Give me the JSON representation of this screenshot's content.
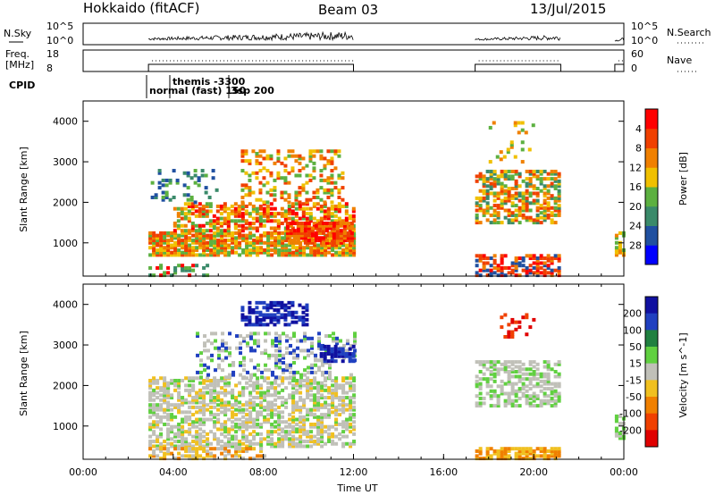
{
  "header": {
    "radar": "Hokkaido (fitACF)",
    "beam": "Beam 03",
    "date": "13/Jul/2015"
  },
  "panels": {
    "nsky_label": "N.Sky",
    "nsearch_label": "N.Search",
    "nsky_ticks": [
      "10^5",
      "10^0"
    ],
    "nsearch_ticks": [
      "10^5",
      "10^0"
    ],
    "freq_label_1": "Freq.",
    "freq_label_2": "[MHz]",
    "freq_ticks": [
      "18",
      "8"
    ],
    "nave_label": "Nave",
    "nave_ticks": [
      "60",
      "0"
    ],
    "cpid_label": "CPID",
    "cpid_text_1": "themis -3300",
    "cpid_text_2": "normal (fast) 150",
    "cpid_text_3": "3sp 200"
  },
  "colors": {
    "power": [
      "#0000ff",
      "#2050a0",
      "#3a8a6a",
      "#5cb040",
      "#f0c000",
      "#f08000",
      "#f04000",
      "#ff0000"
    ],
    "velocity": [
      "#1010a0",
      "#2040c0",
      "#208040",
      "#60d040",
      "#c0c0b8",
      "#f0c020",
      "#f08000",
      "#f04000",
      "#e00000"
    ]
  },
  "chart_data": [
    {
      "type": "heatmap",
      "name": "power",
      "ylabel": "Slant Range [km]",
      "ylim": [
        180,
        4500
      ],
      "yticks": [
        1000,
        2000,
        3000,
        4000
      ],
      "colorbar_label": "Power [dB]",
      "colorbar_ticks": [
        "4",
        "8",
        "12",
        "16",
        "20",
        "24",
        "28"
      ],
      "grid": false
    },
    {
      "type": "heatmap",
      "name": "velocity",
      "ylabel": "Slant Range [km]",
      "ylim": [
        180,
        4500
      ],
      "yticks": [
        1000,
        2000,
        3000,
        4000
      ],
      "colorbar_label": "Velocity [m s^-1]",
      "colorbar_ticks": [
        "200",
        "100",
        "50",
        "15",
        "-15",
        "-50",
        "-100",
        "-200"
      ],
      "grid": false
    }
  ],
  "xaxis": {
    "label": "Time UT",
    "ticks": [
      "00:00",
      "04:00",
      "08:00",
      "12:00",
      "16:00",
      "20:00",
      "00:00"
    ]
  }
}
